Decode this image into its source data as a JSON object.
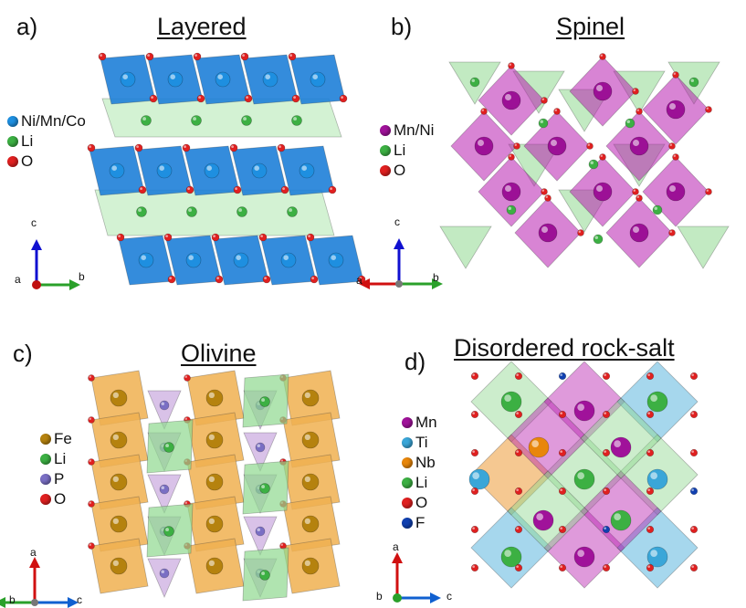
{
  "panels": {
    "a": {
      "label": "a)",
      "title": "Layered",
      "legend": [
        {
          "text": "Ni/Mn/Co",
          "color": "#1e8fe0"
        },
        {
          "text": "Li",
          "color": "#3cb043"
        },
        {
          "text": "O",
          "color": "#e02020"
        }
      ],
      "axes": {
        "up": "c",
        "left": "a",
        "right": "b"
      }
    },
    "b": {
      "label": "b)",
      "title": "Spinel",
      "legend": [
        {
          "text": "Mn/Ni",
          "color": "#a0129a"
        },
        {
          "text": "Li",
          "color": "#3cb043"
        },
        {
          "text": "O",
          "color": "#e02020"
        }
      ],
      "axes": {
        "up": "c",
        "left": "a",
        "right": "b"
      }
    },
    "c": {
      "label": "c)",
      "title": "Olivine",
      "legend": [
        {
          "text": "Fe",
          "color": "#b5820e"
        },
        {
          "text": "Li",
          "color": "#3cb043"
        },
        {
          "text": "P",
          "color": "#7a6fc4"
        },
        {
          "text": "O",
          "color": "#e02020"
        }
      ],
      "axes": {
        "up": "a",
        "left": "b",
        "right": "c"
      }
    },
    "d": {
      "label": "d)",
      "title": "Disordered rock-salt",
      "legend": [
        {
          "text": "Mn",
          "color": "#a0129a"
        },
        {
          "text": "Ti",
          "color": "#3aa6d8"
        },
        {
          "text": "Nb",
          "color": "#e8860a"
        },
        {
          "text": "Li",
          "color": "#3cb043"
        },
        {
          "text": "O",
          "color": "#e02020"
        },
        {
          "text": "F",
          "color": "#1040b0"
        }
      ],
      "axes": {
        "up": "a",
        "left": "b",
        "right": "c"
      }
    }
  }
}
